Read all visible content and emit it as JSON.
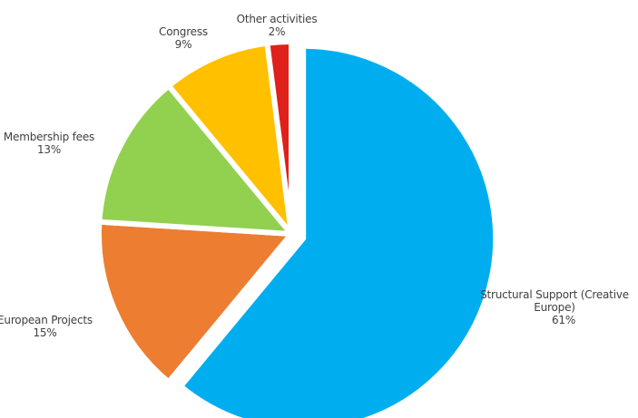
{
  "chart_data": {
    "type": "pie",
    "title": "",
    "slices": [
      {
        "label": "Structural Support (Creative Europe)",
        "value": 61,
        "value_label": "61%",
        "color": "#00AEEF",
        "exploded": true
      },
      {
        "label": "European Projects",
        "value": 15,
        "value_label": "15%",
        "color": "#ED7D31",
        "exploded": false
      },
      {
        "label": "Membership fees",
        "value": 13,
        "value_label": "13%",
        "color": "#92D050",
        "exploded": false
      },
      {
        "label": "Congress",
        "value": 9,
        "value_label": "9%",
        "color": "#FFC000",
        "exploded": false
      },
      {
        "label": "Other activities",
        "value": 2,
        "value_label": "2%",
        "color": "#E0201A",
        "exploded": false
      }
    ]
  }
}
